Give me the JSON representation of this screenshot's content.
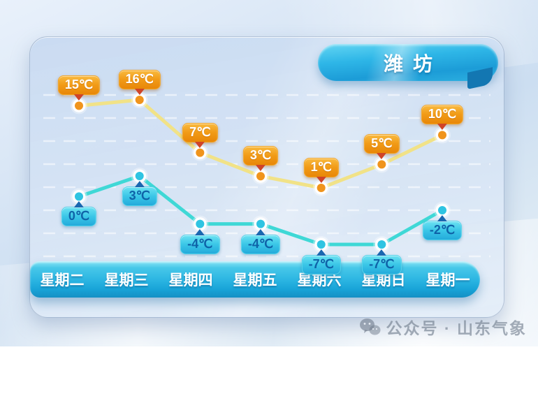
{
  "title": "潍坊",
  "watermark": {
    "text": "公众号 · 山东气象"
  },
  "colors": {
    "high_line": "#f1e287",
    "high_point": "#f0941c",
    "high_badge": "#f19b17",
    "high_pointer": "#d04428",
    "low_line": "#3fd8d6",
    "low_point": "#2fc4e2",
    "low_badge": "#3ac6e7",
    "low_pointer": "#1a67b0",
    "banner": "#2eb6e7",
    "grid": "rgba(255,255,255,0.55)"
  },
  "chart_data": {
    "type": "line",
    "title": "潍坊",
    "xlabel": "",
    "ylabel": "",
    "legend": "none",
    "grid": true,
    "axis_visible": false,
    "categories": [
      "星期二",
      "星期三",
      "星期四",
      "星期五",
      "星期六",
      "星期日",
      "星期一"
    ],
    "series": [
      {
        "name": "high",
        "label_position": "above",
        "unit": "℃",
        "values": [
          15,
          16,
          7,
          3,
          1,
          5,
          10
        ],
        "labels": [
          "15℃",
          "16℃",
          "7℃",
          "3℃",
          "1℃",
          "5℃",
          "10℃"
        ]
      },
      {
        "name": "low",
        "label_position": "below",
        "unit": "℃",
        "values": [
          0,
          3,
          -4,
          -4,
          -7,
          -7,
          -2
        ],
        "labels": [
          "0℃",
          "3℃",
          "-4℃",
          "-4℃",
          "-7℃",
          "-7℃",
          "-2℃"
        ]
      }
    ]
  }
}
